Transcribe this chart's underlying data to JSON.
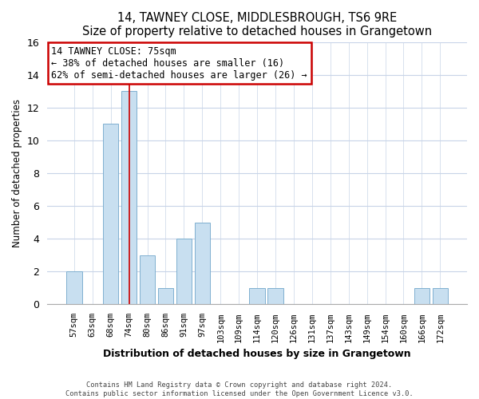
{
  "title": "14, TAWNEY CLOSE, MIDDLESBROUGH, TS6 9RE",
  "subtitle": "Size of property relative to detached houses in Grangetown",
  "xlabel": "Distribution of detached houses by size in Grangetown",
  "ylabel": "Number of detached properties",
  "bar_color": "#c8dff0",
  "bar_edge_color": "#7fb0d0",
  "categories": [
    "57sqm",
    "63sqm",
    "68sqm",
    "74sqm",
    "80sqm",
    "86sqm",
    "91sqm",
    "97sqm",
    "103sqm",
    "109sqm",
    "114sqm",
    "120sqm",
    "126sqm",
    "131sqm",
    "137sqm",
    "143sqm",
    "149sqm",
    "154sqm",
    "160sqm",
    "166sqm",
    "172sqm"
  ],
  "values": [
    2,
    0,
    11,
    13,
    3,
    1,
    4,
    5,
    0,
    0,
    1,
    1,
    0,
    0,
    0,
    0,
    0,
    0,
    0,
    1,
    1
  ],
  "ylim": [
    0,
    16
  ],
  "yticks": [
    0,
    2,
    4,
    6,
    8,
    10,
    12,
    14,
    16
  ],
  "annotation_title": "14 TAWNEY CLOSE: 75sqm",
  "annotation_line1": "← 38% of detached houses are smaller (16)",
  "annotation_line2": "62% of semi-detached houses are larger (26) →",
  "annotation_box_color": "#ffffff",
  "annotation_box_edge_color": "#cc0000",
  "subject_bar_index": 3,
  "subject_line_color": "#cc0000",
  "footer_line1": "Contains HM Land Registry data © Crown copyright and database right 2024.",
  "footer_line2": "Contains public sector information licensed under the Open Government Licence v3.0.",
  "background_color": "#ffffff",
  "grid_color": "#c8d4e8"
}
